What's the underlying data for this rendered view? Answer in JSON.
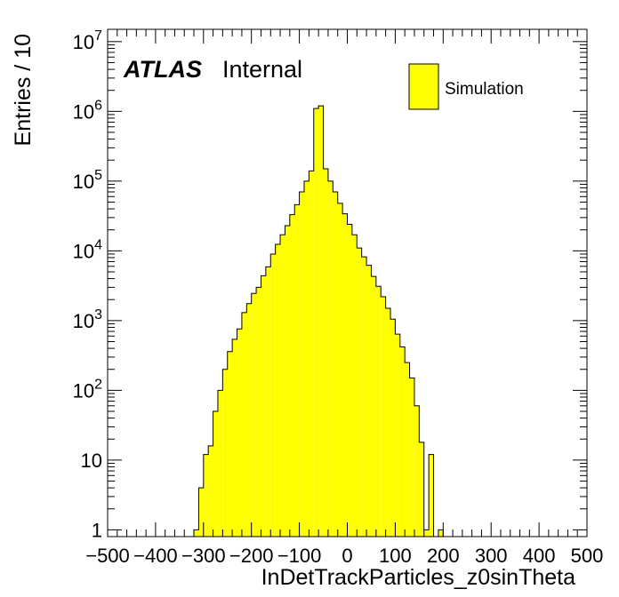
{
  "chart_data": {
    "type": "bar",
    "xlabel": "InDetTrackParticles_z0sinTheta",
    "ylabel": "Entries / 10",
    "xlim": [
      -500,
      500
    ],
    "ylim": [
      0.8,
      15000000
    ],
    "yscale": "log",
    "bin_width": 10,
    "fill_color": "#ffff00",
    "edge_color": "#000000",
    "atlas_label": "ATLAS",
    "atlas_sublabel": "Internal",
    "legend": {
      "position": "top-right",
      "entries": [
        "Simulation"
      ]
    },
    "x_ticks": [
      -500,
      -400,
      -300,
      -200,
      -100,
      0,
      100,
      200,
      300,
      400,
      500
    ],
    "x_tick_labels": [
      "−500",
      "−400",
      "−300",
      "−200",
      "−100",
      "0",
      "100",
      "200",
      "300",
      "400",
      "500"
    ],
    "y_tick_labels": [
      {
        "value": 1,
        "base": "1",
        "exp": ""
      },
      {
        "value": 10,
        "base": "10",
        "exp": ""
      },
      {
        "value": 100,
        "base": "10",
        "exp": "2"
      },
      {
        "value": 1000,
        "base": "10",
        "exp": "3"
      },
      {
        "value": 10000,
        "base": "10",
        "exp": "4"
      },
      {
        "value": 100000,
        "base": "10",
        "exp": "5"
      },
      {
        "value": 1000000,
        "base": "10",
        "exp": "6"
      },
      {
        "value": 10000000,
        "base": "10",
        "exp": "7"
      }
    ],
    "bins_lower_edge_start": -320,
    "values": [
      1,
      4,
      12,
      16,
      50,
      100,
      200,
      360,
      540,
      760,
      1300,
      1750,
      2450,
      3000,
      4400,
      5900,
      9000,
      12400,
      17000,
      23000,
      33000,
      46000,
      70000,
      100000,
      140000,
      1100000,
      1200000,
      150000,
      100000,
      70000,
      48000,
      34000,
      24000,
      17000,
      11000,
      8200,
      6200,
      4300,
      3100,
      2200,
      1500,
      1050,
      640,
      420,
      250,
      150,
      60,
      18,
      1,
      12,
      0,
      1
    ]
  }
}
